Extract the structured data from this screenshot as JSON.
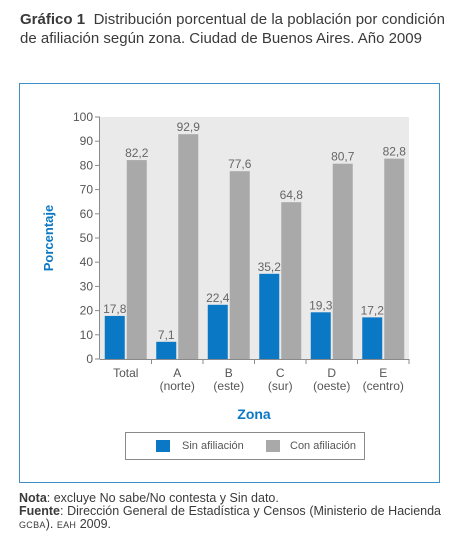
{
  "header": {
    "label": "Gráfico 1",
    "text": "Distribución porcentual de la población por condición de afiliación según zona. Ciudad de Buenos Aires. Año 2009"
  },
  "chart_data": {
    "type": "bar",
    "title": "",
    "xlabel": "Zona",
    "ylabel": "Porcentaje",
    "ylim": [
      0,
      100
    ],
    "yticks": [
      "0",
      "10",
      "20",
      "30",
      "40",
      "50",
      "60",
      "70",
      "80",
      "90",
      "100"
    ],
    "categories": [
      [
        "Total",
        ""
      ],
      [
        "A",
        "(norte)"
      ],
      [
        "B",
        "(este)"
      ],
      [
        "C",
        "(sur)"
      ],
      [
        "D",
        "(oeste)"
      ],
      [
        "E",
        "(centro)"
      ]
    ],
    "series": [
      {
        "name": "Sin afiliación",
        "color": "#0a78c4",
        "values": [
          17.8,
          7.1,
          22.4,
          35.2,
          19.3,
          17.2
        ],
        "labels": [
          "17,8",
          "7,1",
          "22,4",
          "35,2",
          "19,3",
          "17,2"
        ]
      },
      {
        "name": "Con afiliación",
        "color": "#a9a9a9",
        "values": [
          82.2,
          92.9,
          77.6,
          64.8,
          80.7,
          82.8
        ],
        "labels": [
          "82,2",
          "92,9",
          "77,6",
          "64,8",
          "80,7",
          "82,8"
        ]
      }
    ],
    "grid": false,
    "legend_position": "bottom"
  },
  "notes": {
    "nota_label": "Nota",
    "nota_text": ": excluye No sabe/No contesta y Sin dato.",
    "fuente_label": "Fuente",
    "fuente_text": ": Dirección General de Estadística y Censos (Ministerio de Hacienda ",
    "fuente_gcba": "GCBA",
    "fuente_sep": "). ",
    "fuente_eah": "EAH",
    "fuente_year": " 2009."
  },
  "colors": {
    "frame": "#3f8fc8",
    "axis_title": "#0a78c4",
    "plot_bg": "#eaeaea"
  }
}
